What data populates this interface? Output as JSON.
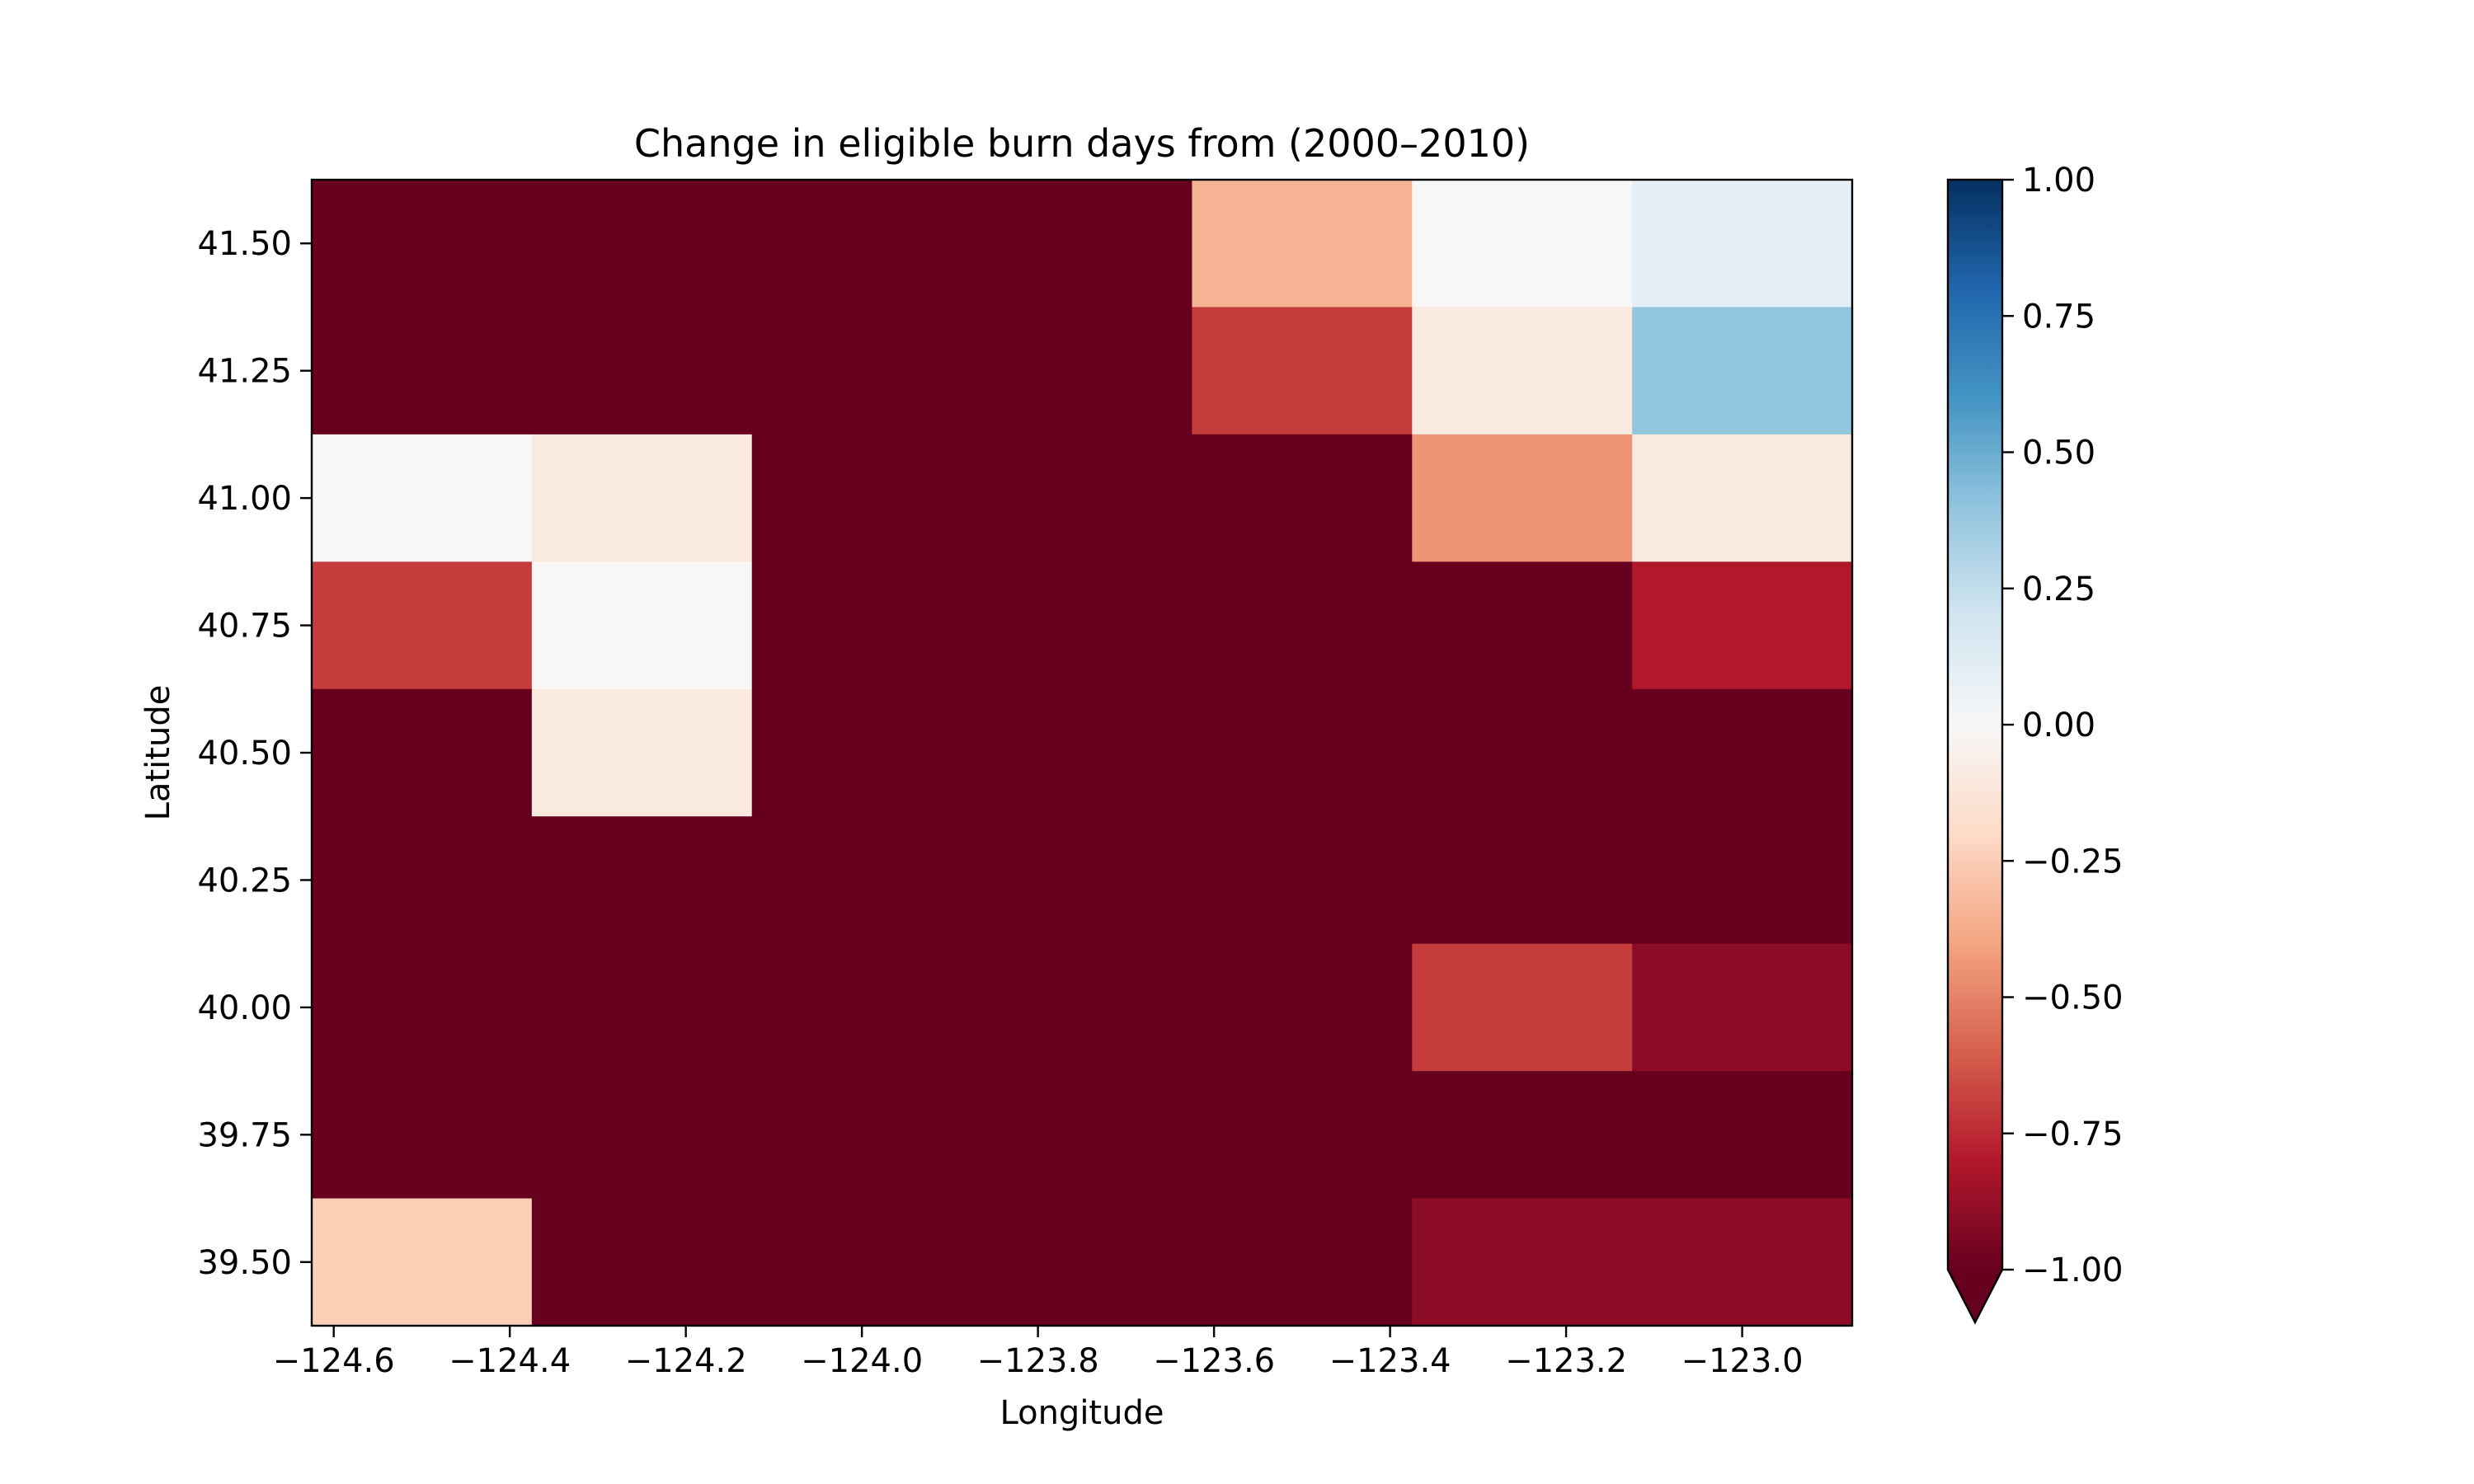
{
  "chart_data": {
    "type": "heatmap",
    "title": "Change in eligible burn days from (2000–2010)",
    "xlabel": "Longitude",
    "ylabel": "Latitude",
    "xlim": [
      -124.625,
      -122.875
    ],
    "ylim": [
      39.375,
      41.625
    ],
    "x_ticks": [
      -124.6,
      -124.4,
      -124.2,
      -124.0,
      -123.8,
      -123.6,
      -123.4,
      -123.2,
      -123.0
    ],
    "x_tick_labels": [
      "−124.6",
      "−124.4",
      "−124.2",
      "−124.0",
      "−123.8",
      "−123.6",
      "−123.4",
      "−123.2",
      "−123.0"
    ],
    "y_ticks": [
      39.5,
      39.75,
      40.0,
      40.25,
      40.5,
      40.75,
      41.0,
      41.25,
      41.5
    ],
    "y_tick_labels": [
      "39.50",
      "39.75",
      "40.00",
      "40.25",
      "40.50",
      "40.75",
      "41.00",
      "41.25",
      "41.50"
    ],
    "lon_centers": [
      -124.5,
      -124.25,
      -124.0,
      -123.75,
      -123.5,
      -123.25,
      -123.0
    ],
    "lat_centers": [
      41.5,
      41.25,
      41.0,
      40.75,
      40.5,
      40.25,
      40.0,
      39.75,
      39.5
    ],
    "values": [
      [
        -1.0,
        -1.0,
        -1.0,
        -1.0,
        -0.35,
        0.0,
        0.1
      ],
      [
        -1.0,
        -1.0,
        -1.0,
        -1.0,
        -0.7,
        -0.1,
        0.4
      ],
      [
        0.0,
        -0.1,
        -1.0,
        -1.0,
        -1.0,
        -0.45,
        -0.1
      ],
      [
        -0.7,
        0.0,
        -1.0,
        -1.0,
        -1.0,
        -1.0,
        -0.8
      ],
      [
        -1.0,
        -0.1,
        -1.0,
        -1.0,
        -1.0,
        -1.0,
        -1.0
      ],
      [
        -1.0,
        -1.0,
        -1.0,
        -1.0,
        -1.0,
        -1.0,
        -1.0
      ],
      [
        -1.0,
        -1.0,
        -1.0,
        -1.0,
        -1.0,
        -0.7,
        -0.9
      ],
      [
        -1.0,
        -1.0,
        -1.0,
        -1.0,
        -1.0,
        -1.0,
        -1.0
      ],
      [
        -0.25,
        -1.0,
        -1.0,
        -1.0,
        -1.0,
        -0.9,
        -0.9
      ]
    ],
    "colorbar": {
      "colormap": "RdBu",
      "vmin": -1.0,
      "vmax": 1.0,
      "extend": "min",
      "ticks": [
        -1.0,
        -0.75,
        -0.5,
        -0.25,
        0.0,
        0.25,
        0.5,
        0.75,
        1.0
      ],
      "tick_labels": [
        "−1.00",
        "−0.75",
        "−0.50",
        "−0.25",
        "0.00",
        "0.25",
        "0.50",
        "0.75",
        "1.00"
      ]
    }
  }
}
